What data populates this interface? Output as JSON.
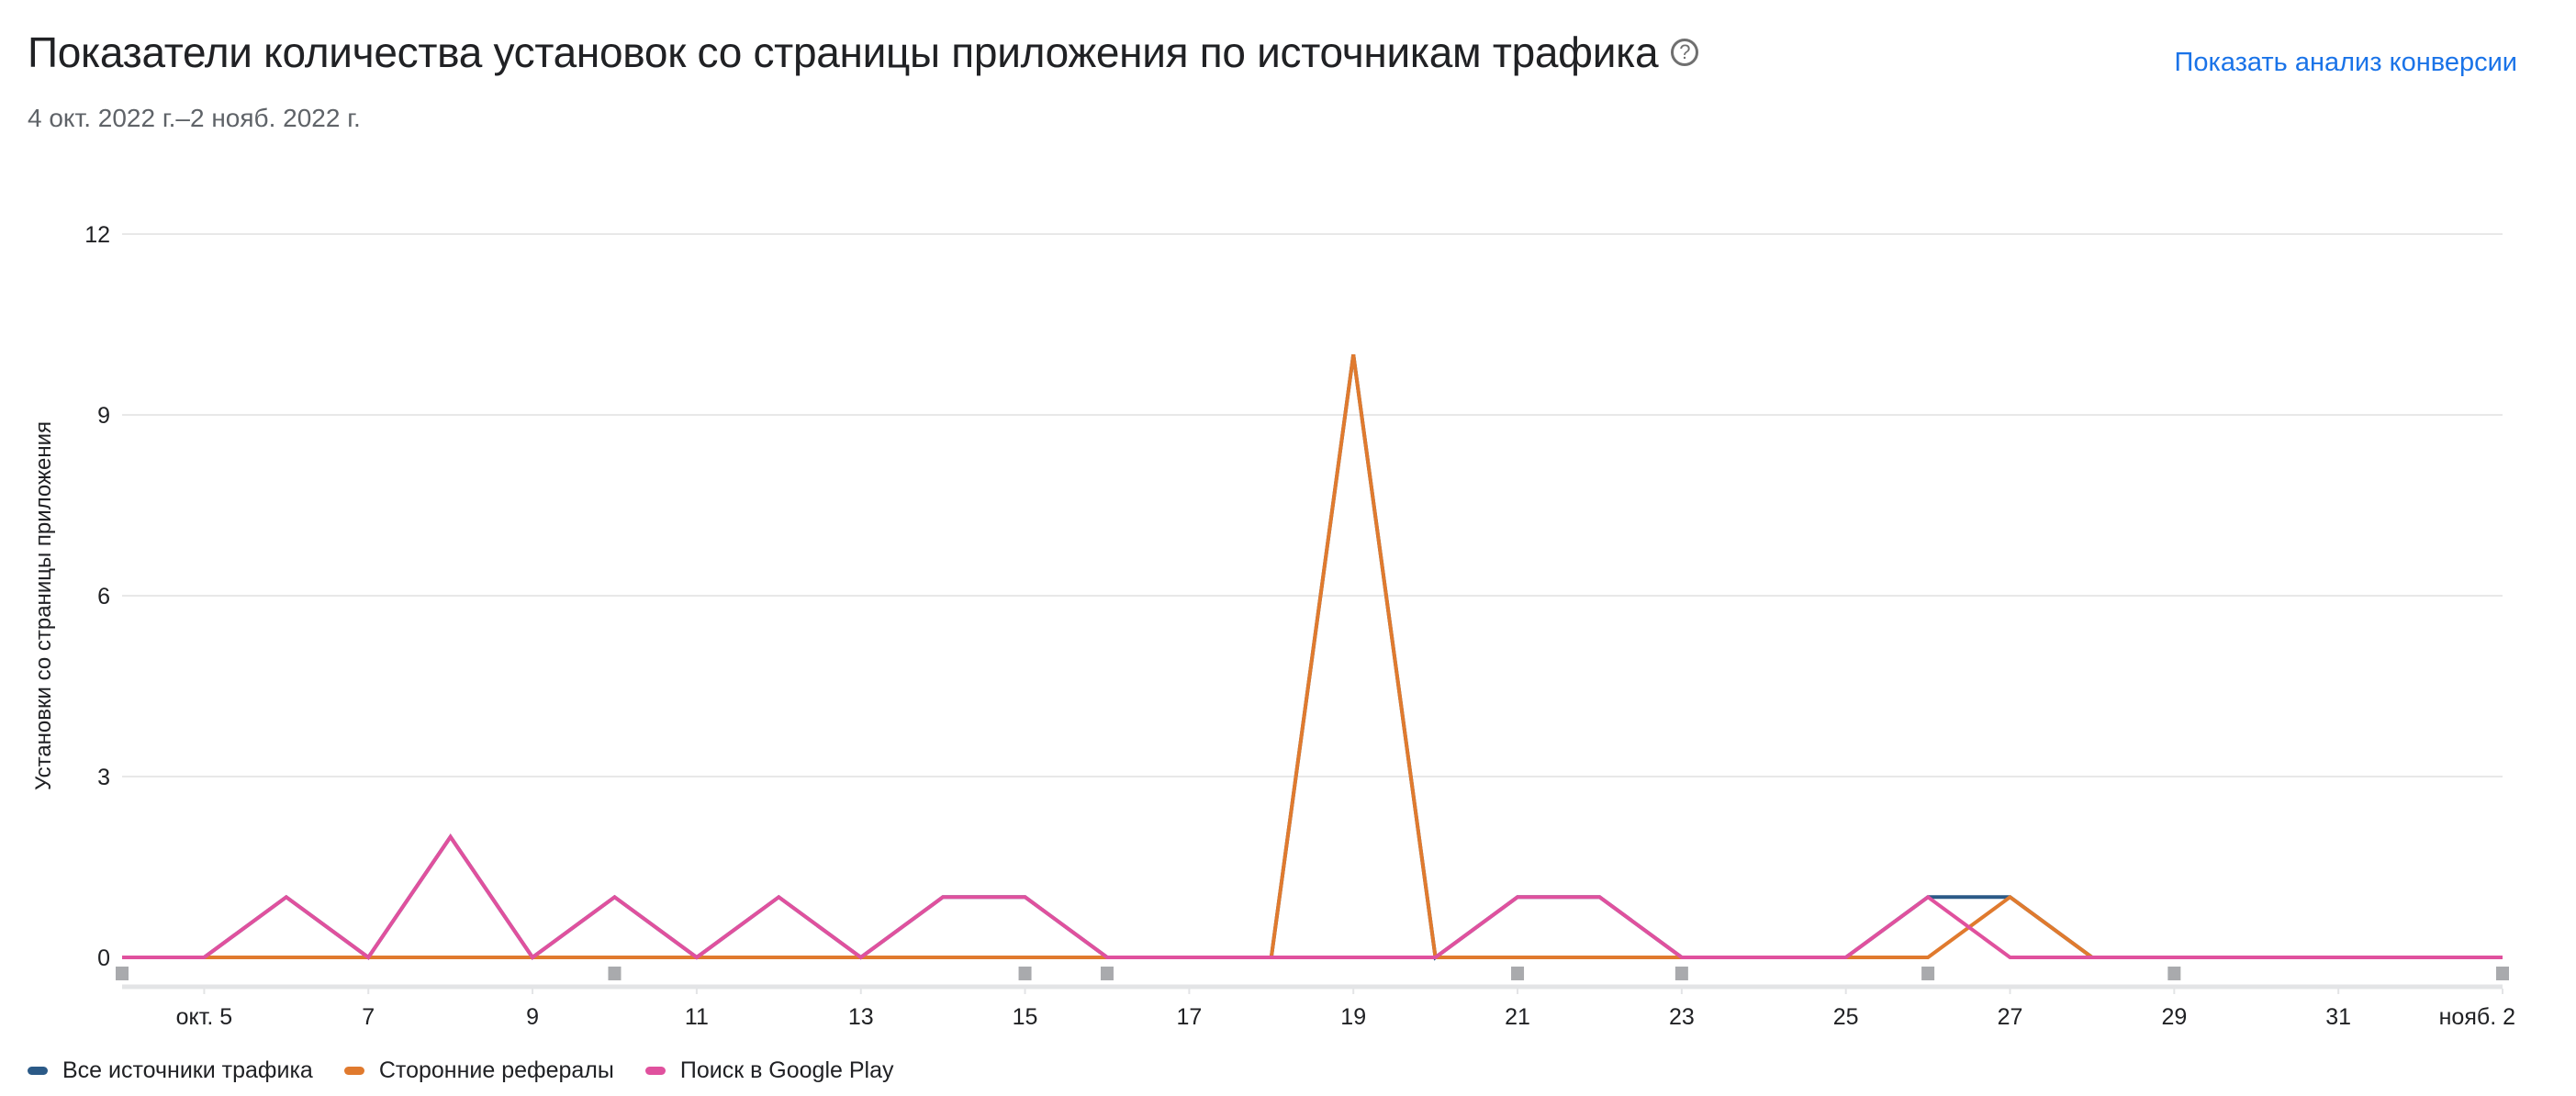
{
  "header": {
    "title": "Показатели количества установок со страницы приложения по источникам трафика",
    "help_icon": "question-circle-icon",
    "date_range": "4 окт. 2022 г.–2 нояб. 2022 г.",
    "link_label": "Показать анализ конверсии"
  },
  "colors": {
    "all_sources": "#2b5a87",
    "referrals": "#e07a2e",
    "google_play_search": "#e0519e",
    "link": "#1a73e8",
    "gridline": "#e8e8e8",
    "marker": "#a9aaad"
  },
  "chart_data": {
    "type": "line",
    "title": "Показатели количества установок со страницы приложения по источникам трафика",
    "subtitle": "4 окт. 2022 г.–2 нояб. 2022 г.",
    "xlabel": "",
    "ylabel": "Установки со страницы приложения",
    "ylim": [
      0,
      12
    ],
    "yticks": [
      0,
      3,
      6,
      9,
      12
    ],
    "grid": true,
    "legend_position": "bottom-left",
    "x": [
      "окт. 4",
      "окт. 5",
      "окт. 6",
      "окт. 7",
      "окт. 8",
      "окт. 9",
      "окт. 10",
      "окт. 11",
      "окт. 12",
      "окт. 13",
      "окт. 14",
      "окт. 15",
      "окт. 16",
      "окт. 17",
      "окт. 18",
      "окт. 19",
      "окт. 20",
      "окт. 21",
      "окт. 22",
      "окт. 23",
      "окт. 24",
      "окт. 25",
      "окт. 26",
      "окт. 27",
      "окт. 28",
      "окт. 29",
      "окт. 30",
      "окт. 31",
      "нояб. 1",
      "нояб. 2"
    ],
    "xtick_labels": [
      "окт. 5",
      "7",
      "9",
      "11",
      "13",
      "15",
      "17",
      "19",
      "21",
      "23",
      "25",
      "27",
      "29",
      "31",
      "нояб. 2"
    ],
    "xtick_indices": [
      1,
      3,
      5,
      7,
      9,
      11,
      13,
      15,
      17,
      19,
      21,
      23,
      25,
      27,
      29
    ],
    "series": [
      {
        "name": "Все источники трафика",
        "key": "all_sources",
        "values": [
          0,
          0,
          1,
          0,
          2,
          0,
          1,
          0,
          1,
          0,
          1,
          1,
          0,
          0,
          0,
          10,
          0,
          1,
          1,
          0,
          0,
          0,
          1,
          1,
          0,
          0,
          0,
          0,
          0,
          0
        ]
      },
      {
        "name": "Сторонние рефералы",
        "key": "referrals",
        "values": [
          0,
          0,
          0,
          0,
          0,
          0,
          0,
          0,
          0,
          0,
          0,
          0,
          0,
          0,
          0,
          10,
          0,
          0,
          0,
          0,
          0,
          0,
          0,
          1,
          0,
          0,
          0,
          0,
          0,
          0
        ]
      },
      {
        "name": "Поиск в Google Play",
        "key": "google_play_search",
        "values": [
          0,
          0,
          1,
          0,
          2,
          0,
          1,
          0,
          1,
          0,
          1,
          1,
          0,
          0,
          0,
          0,
          0,
          1,
          1,
          0,
          0,
          0,
          1,
          0,
          0,
          0,
          0,
          0,
          0,
          0
        ]
      }
    ],
    "annotation_marker_indices": [
      0,
      6,
      11,
      12,
      17,
      19,
      22,
      25,
      29
    ]
  },
  "legend": [
    {
      "label": "Все источники трафика",
      "color": "#2b5a87"
    },
    {
      "label": "Сторонние рефералы",
      "color": "#e07a2e"
    },
    {
      "label": "Поиск в Google Play",
      "color": "#e0519e"
    }
  ]
}
